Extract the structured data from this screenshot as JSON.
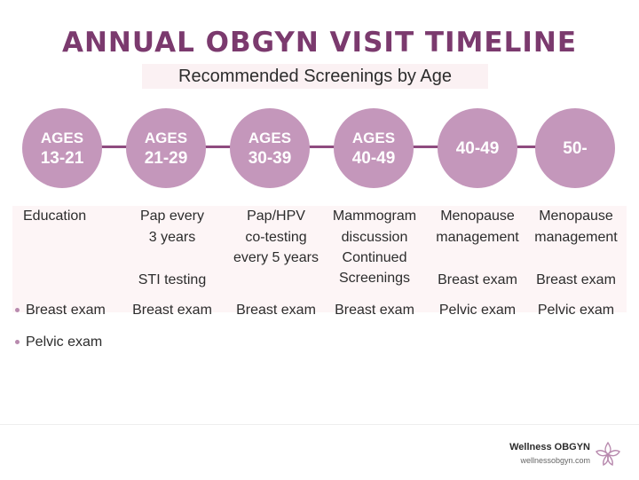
{
  "title": "ANNUAL OBGYN VISIT TIMELINE",
  "subtitle": "Recommended Screenings by Age",
  "colors": {
    "title": "#7b3a6e",
    "circle": "#c497bb",
    "connector": "#8e4b7f",
    "band": "#fdf5f6"
  },
  "stages": [
    {
      "line1": "AGES",
      "line2": "13-21"
    },
    {
      "line1": "AGES",
      "line2": "21-29"
    },
    {
      "line1": "AGES",
      "line2": "30-39"
    },
    {
      "line1": "AGES",
      "line2": "40-49"
    },
    {
      "line1": "",
      "line2": "40-49"
    },
    {
      "line1": "",
      "line2": "50-"
    }
  ],
  "row1": [
    "Education",
    "Pap every",
    "Pap/HPV",
    "Mammogram",
    "Menopause",
    "Menopause"
  ],
  "row2": [
    "",
    "3 years",
    "co-testing",
    "discussion",
    "management",
    "management"
  ],
  "row3": [
    "",
    "",
    "every 5 years",
    "Continued",
    "",
    ""
  ],
  "row4": [
    "",
    "STI testing",
    "",
    "Screenings",
    "Breast exam",
    "Breast exam"
  ],
  "row5": [
    "Breast exam",
    "Breast exam",
    "Breast exam",
    "Breast exam",
    "Pelvic exam",
    "Pelvic exam"
  ],
  "extra": "Pelvic exam",
  "footer": {
    "brand": "Wellness OBGYN",
    "url": "wellnessobgyn.com"
  },
  "icons": {
    "logo": "lotus-flower-icon"
  }
}
